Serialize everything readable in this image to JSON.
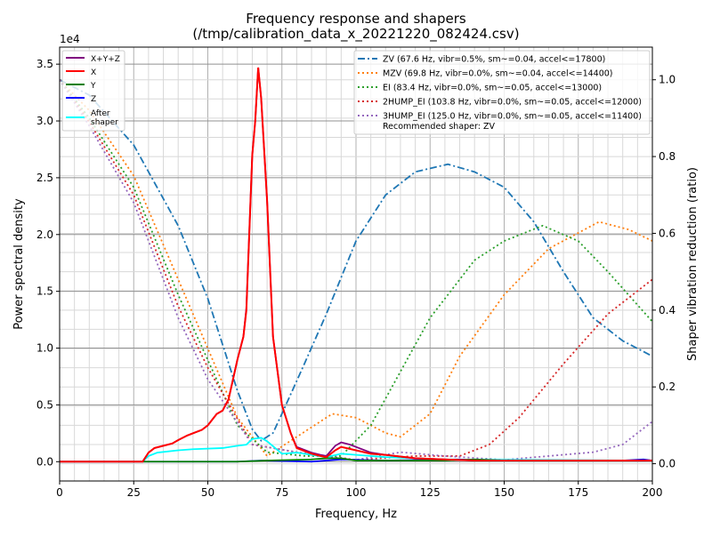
{
  "chart_data": {
    "type": "line",
    "title": "Frequency response and shapers",
    "subtitle": "(/tmp/calibration_data_x_20221220_082424.csv)",
    "xlabel": "Frequency, Hz",
    "ylabel": "Power spectral density",
    "y2label": "Shaper vibration reduction (ratio)",
    "y_multiplier": "1e4",
    "xlim": [
      0,
      200
    ],
    "ylim": [
      -0.17,
      3.65
    ],
    "y2lim": [
      -0.045,
      1.085
    ],
    "xticks": [
      "0",
      "25",
      "50",
      "75",
      "100",
      "125",
      "150",
      "175",
      "200"
    ],
    "yticks": [
      "0.0",
      "0.5",
      "1.0",
      "1.5",
      "2.0",
      "2.5",
      "3.0",
      "3.5"
    ],
    "y2ticks": [
      "0.0",
      "0.2",
      "0.4",
      "0.6",
      "0.8",
      "1.0"
    ],
    "grid": true,
    "psd_series": [
      {
        "name": "X+Y+Z",
        "color": "#800080",
        "points": [
          [
            0,
            0
          ],
          [
            28,
            0
          ],
          [
            30,
            0.08
          ],
          [
            32,
            0.12
          ],
          [
            35,
            0.14
          ],
          [
            38,
            0.16
          ],
          [
            40,
            0.19
          ],
          [
            43,
            0.23
          ],
          [
            45,
            0.25
          ],
          [
            48,
            0.28
          ],
          [
            50,
            0.32
          ],
          [
            53,
            0.42
          ],
          [
            55,
            0.45
          ],
          [
            57,
            0.55
          ],
          [
            60,
            0.9
          ],
          [
            62,
            1.1
          ],
          [
            63,
            1.35
          ],
          [
            65,
            2.7
          ],
          [
            66,
            3.0
          ],
          [
            67,
            3.47
          ],
          [
            68,
            3.2
          ],
          [
            70,
            2.3
          ],
          [
            72,
            1.1
          ],
          [
            75,
            0.5
          ],
          [
            78,
            0.25
          ],
          [
            80,
            0.13
          ],
          [
            85,
            0.08
          ],
          [
            88,
            0.06
          ],
          [
            90,
            0.05
          ],
          [
            93,
            0.14
          ],
          [
            95,
            0.17
          ],
          [
            98,
            0.15
          ],
          [
            100,
            0.13
          ],
          [
            105,
            0.08
          ],
          [
            110,
            0.06
          ],
          [
            120,
            0.03
          ],
          [
            130,
            0.02
          ],
          [
            140,
            0.01
          ],
          [
            200,
            0.01
          ]
        ]
      },
      {
        "name": "X",
        "color": "#ff0000",
        "points": [
          [
            0,
            0
          ],
          [
            28,
            0
          ],
          [
            30,
            0.08
          ],
          [
            32,
            0.12
          ],
          [
            35,
            0.14
          ],
          [
            38,
            0.16
          ],
          [
            40,
            0.19
          ],
          [
            43,
            0.23
          ],
          [
            45,
            0.25
          ],
          [
            48,
            0.28
          ],
          [
            50,
            0.32
          ],
          [
            53,
            0.42
          ],
          [
            55,
            0.45
          ],
          [
            57,
            0.55
          ],
          [
            60,
            0.9
          ],
          [
            62,
            1.1
          ],
          [
            63,
            1.33
          ],
          [
            65,
            2.7
          ],
          [
            66,
            3.0
          ],
          [
            67,
            3.47
          ],
          [
            68,
            3.2
          ],
          [
            70,
            2.3
          ],
          [
            72,
            1.1
          ],
          [
            75,
            0.5
          ],
          [
            78,
            0.25
          ],
          [
            80,
            0.12
          ],
          [
            85,
            0.07
          ],
          [
            88,
            0.05
          ],
          [
            90,
            0.04
          ],
          [
            93,
            0.1
          ],
          [
            95,
            0.13
          ],
          [
            100,
            0.1
          ],
          [
            105,
            0.07
          ],
          [
            110,
            0.06
          ],
          [
            120,
            0.03
          ],
          [
            130,
            0.02
          ],
          [
            140,
            0.01
          ],
          [
            200,
            0.01
          ]
        ]
      },
      {
        "name": "Y",
        "color": "#008000",
        "points": [
          [
            0,
            0
          ],
          [
            60,
            0
          ],
          [
            70,
            0.01
          ],
          [
            85,
            0.02
          ],
          [
            90,
            0.03
          ],
          [
            95,
            0.03
          ],
          [
            100,
            0.01
          ],
          [
            130,
            0.01
          ],
          [
            140,
            0.02
          ],
          [
            150,
            0.01
          ],
          [
            200,
            0.01
          ]
        ]
      },
      {
        "name": "Z",
        "color": "#0000ff",
        "points": [
          [
            0,
            0
          ],
          [
            60,
            0
          ],
          [
            68,
            0.01
          ],
          [
            85,
            0
          ],
          [
            95,
            0.02
          ],
          [
            110,
            0.01
          ],
          [
            135,
            0.02
          ],
          [
            140,
            0.01
          ],
          [
            190,
            0.01
          ],
          [
            197,
            0.02
          ],
          [
            200,
            0.01
          ]
        ]
      },
      {
        "name": "After\nshaper",
        "color": "#00ffff",
        "points": [
          [
            0,
            0
          ],
          [
            28,
            0
          ],
          [
            30,
            0.05
          ],
          [
            33,
            0.08
          ],
          [
            40,
            0.1
          ],
          [
            45,
            0.11
          ],
          [
            55,
            0.12
          ],
          [
            60,
            0.14
          ],
          [
            63,
            0.15
          ],
          [
            65,
            0.2
          ],
          [
            68,
            0.21
          ],
          [
            70,
            0.18
          ],
          [
            75,
            0.07
          ],
          [
            80,
            0.08
          ],
          [
            85,
            0.06
          ],
          [
            90,
            0.04
          ],
          [
            95,
            0.07
          ],
          [
            100,
            0.06
          ],
          [
            110,
            0.04
          ],
          [
            130,
            0.02
          ],
          [
            200,
            0.01
          ]
        ]
      }
    ],
    "shaper_series": [
      {
        "name": "ZV (67.6 Hz, vibr=0.5%, sm~=0.04, accel<=17800)",
        "color": "#1f77b4",
        "dash": "dashdot",
        "points": [
          [
            0,
            1.0
          ],
          [
            10,
            0.96
          ],
          [
            25,
            0.83
          ],
          [
            40,
            0.62
          ],
          [
            50,
            0.43
          ],
          [
            60,
            0.19
          ],
          [
            65,
            0.09
          ],
          [
            68,
            0.06
          ],
          [
            72,
            0.08
          ],
          [
            75,
            0.13
          ],
          [
            82,
            0.25
          ],
          [
            90,
            0.39
          ],
          [
            100,
            0.58
          ],
          [
            110,
            0.7
          ],
          [
            120,
            0.76
          ],
          [
            131,
            0.78
          ],
          [
            140,
            0.76
          ],
          [
            150,
            0.72
          ],
          [
            160,
            0.63
          ],
          [
            170,
            0.5
          ],
          [
            180,
            0.38
          ],
          [
            190,
            0.32
          ],
          [
            200,
            0.28
          ]
        ]
      },
      {
        "name": "MZV (69.8 Hz, vibr=0.0%, sm~=0.04, accel<=14400)",
        "color": "#ff7f0e",
        "dash": "dot",
        "points": [
          [
            0,
            1.0
          ],
          [
            10,
            0.92
          ],
          [
            25,
            0.75
          ],
          [
            40,
            0.48
          ],
          [
            50,
            0.3
          ],
          [
            60,
            0.12
          ],
          [
            70,
            0.02
          ],
          [
            80,
            0.07
          ],
          [
            92,
            0.13
          ],
          [
            100,
            0.12
          ],
          [
            110,
            0.08
          ],
          [
            115,
            0.07
          ],
          [
            125,
            0.13
          ],
          [
            135,
            0.28
          ],
          [
            150,
            0.44
          ],
          [
            165,
            0.56
          ],
          [
            182,
            0.63
          ],
          [
            192,
            0.61
          ],
          [
            200,
            0.58
          ]
        ]
      },
      {
        "name": "EI (83.4 Hz, vibr=0.0%, sm~=0.05, accel<=13000)",
        "color": "#2ca02c",
        "dash": "dot",
        "points": [
          [
            0,
            1.0
          ],
          [
            10,
            0.9
          ],
          [
            25,
            0.72
          ],
          [
            40,
            0.44
          ],
          [
            50,
            0.27
          ],
          [
            60,
            0.1
          ],
          [
            70,
            0.03
          ],
          [
            83,
            0.02
          ],
          [
            95,
            0.02
          ],
          [
            105,
            0.1
          ],
          [
            115,
            0.24
          ],
          [
            125,
            0.38
          ],
          [
            140,
            0.53
          ],
          [
            150,
            0.58
          ],
          [
            163,
            0.62
          ],
          [
            175,
            0.58
          ],
          [
            185,
            0.5
          ],
          [
            200,
            0.37
          ]
        ]
      },
      {
        "name": "2HUMP_EI (103.8 Hz, vibr=0.0%, sm~=0.05, accel<=12000)",
        "color": "#d62728",
        "dash": "dot",
        "points": [
          [
            0,
            1.0
          ],
          [
            10,
            0.89
          ],
          [
            25,
            0.7
          ],
          [
            40,
            0.41
          ],
          [
            50,
            0.25
          ],
          [
            65,
            0.05
          ],
          [
            80,
            0.03
          ],
          [
            90,
            0.02
          ],
          [
            100,
            0.01
          ],
          [
            120,
            0.02
          ],
          [
            135,
            0.02
          ],
          [
            145,
            0.05
          ],
          [
            155,
            0.12
          ],
          [
            170,
            0.26
          ],
          [
            185,
            0.39
          ],
          [
            200,
            0.48
          ]
        ]
      },
      {
        "name": "3HUMP_EI (125.0 Hz, vibr=0.0%, sm~=0.05, accel<=11400)",
        "color": "#9467bd",
        "dash": "dot",
        "points": [
          [
            0,
            1.0
          ],
          [
            10,
            0.88
          ],
          [
            25,
            0.68
          ],
          [
            40,
            0.38
          ],
          [
            50,
            0.22
          ],
          [
            65,
            0.05
          ],
          [
            80,
            0.03
          ],
          [
            100,
            0.01
          ],
          [
            115,
            0.03
          ],
          [
            130,
            0.02
          ],
          [
            150,
            0.01
          ],
          [
            165,
            0.02
          ],
          [
            180,
            0.03
          ],
          [
            190,
            0.05
          ],
          [
            200,
            0.11
          ]
        ]
      }
    ],
    "recommendation": "Recommended shaper: ZV",
    "legend_left_placement": "top-left",
    "legend_right_placement": "top-right"
  }
}
